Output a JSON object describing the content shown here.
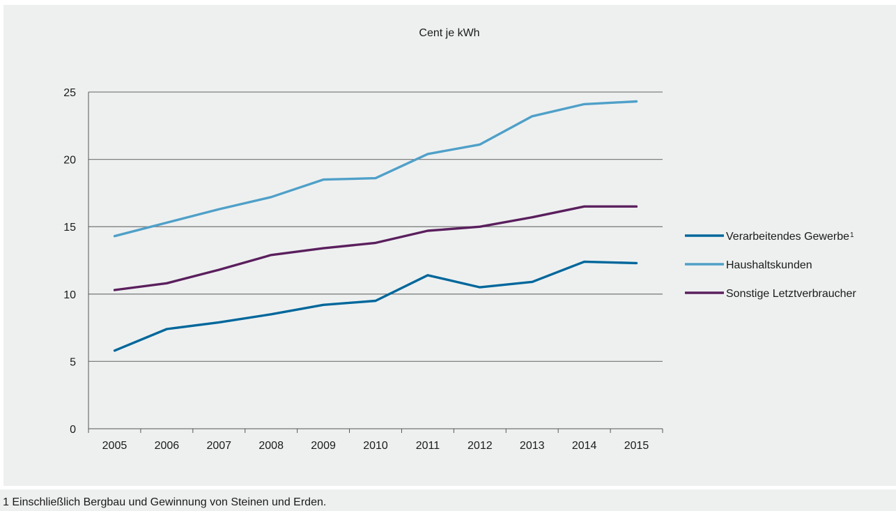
{
  "chart_data": {
    "type": "line",
    "title": "",
    "unit_label": "Cent je kWh",
    "xlabel": "",
    "ylabel": "",
    "x": [
      "2005",
      "2006",
      "2007",
      "2008",
      "2009",
      "2010",
      "2011",
      "2012",
      "2013",
      "2014",
      "2015"
    ],
    "ylim": [
      0,
      25
    ],
    "yticks": [
      0,
      5,
      10,
      15,
      20,
      25
    ],
    "grid": true,
    "legend_position": "right",
    "series": [
      {
        "name": "Verarbeitendes Gewerbe",
        "name_suffix": "1",
        "color": "#00679b",
        "values": [
          5.8,
          7.4,
          7.9,
          8.5,
          9.2,
          9.5,
          11.4,
          10.5,
          10.9,
          12.4,
          12.3
        ]
      },
      {
        "name": "Haushaltskunden",
        "color": "#4fa0c8",
        "values": [
          14.3,
          15.3,
          16.3,
          17.2,
          18.5,
          18.6,
          20.4,
          21.1,
          23.2,
          24.1,
          24.3
        ]
      },
      {
        "name": "Sonstige Letztverbraucher",
        "color": "#5a1f5d",
        "values": [
          10.3,
          10.8,
          11.8,
          12.9,
          13.4,
          13.8,
          14.7,
          15.0,
          15.7,
          16.5,
          16.5
        ]
      }
    ]
  },
  "footnote": "1 Einschließlich Bergbau und Gewinnung von Steinen und Erden."
}
